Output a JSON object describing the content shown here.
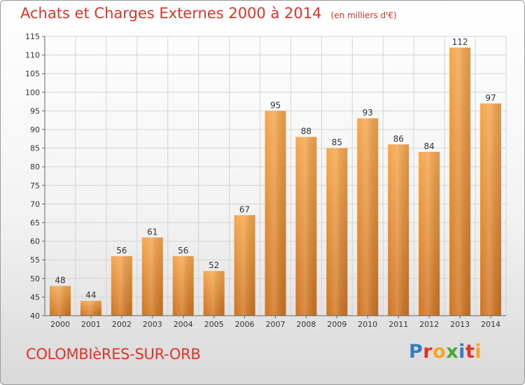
{
  "chart_data": {
    "type": "bar",
    "title": "Achats et Charges Externes 2000 à 2014",
    "subtitle": "(en milliers d'€)",
    "categories": [
      "2000",
      "2001",
      "2002",
      "2003",
      "2004",
      "2005",
      "2006",
      "2007",
      "2008",
      "2009",
      "2010",
      "2011",
      "2012",
      "2013",
      "2014"
    ],
    "values": [
      48,
      44,
      56,
      61,
      56,
      52,
      67,
      95,
      88,
      85,
      93,
      86,
      84,
      112,
      97
    ],
    "ylim": [
      40,
      115
    ],
    "yticks": [
      40,
      45,
      50,
      55,
      60,
      65,
      70,
      75,
      80,
      85,
      90,
      95,
      100,
      105,
      110,
      115
    ],
    "grid": true,
    "bar_color": "#f0a040",
    "bar_color_dark": "#c8701a"
  },
  "footer": {
    "commune": "COLOMBIèRES-SUR-ORB",
    "brand_letters": [
      {
        "ch": "P",
        "color": "#2f7fc4"
      },
      {
        "ch": "r",
        "color": "#e0342a"
      },
      {
        "ch": "o",
        "color": "#f4a623"
      },
      {
        "ch": "x",
        "color": "#4aa832"
      },
      {
        "ch": "i",
        "color": "#2f7fc4"
      },
      {
        "ch": "t",
        "color": "#e0342a"
      },
      {
        "ch": "i",
        "color": "#f4a623"
      }
    ]
  }
}
